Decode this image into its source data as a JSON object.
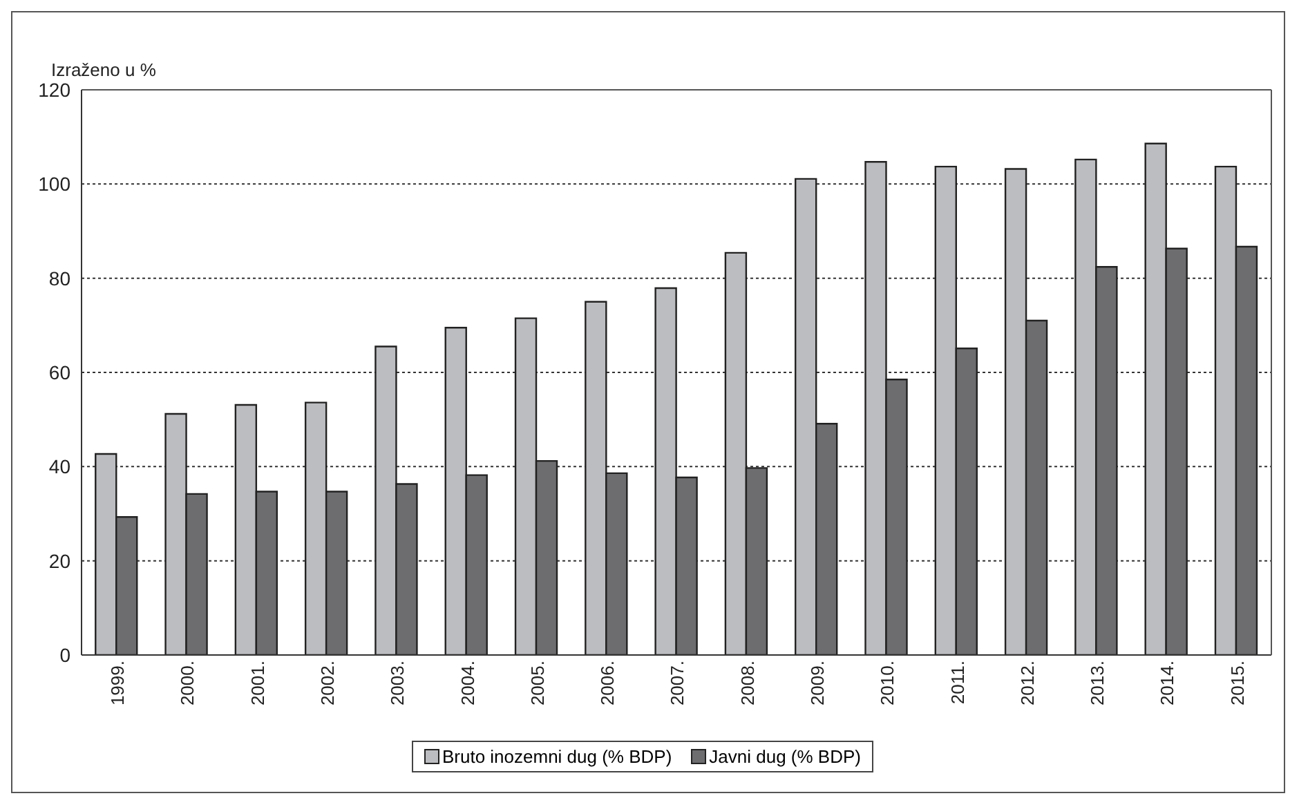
{
  "chart_data": {
    "type": "bar",
    "ylabel": "Izraženo u %",
    "categories": [
      "1999.",
      "2000.",
      "2001.",
      "2002.",
      "2003.",
      "2004.",
      "2005.",
      "2006.",
      "2007.",
      "2008.",
      "2009.",
      "2010.",
      "2011.",
      "2012.",
      "2013.",
      "2014.",
      "2015."
    ],
    "series": [
      {
        "name": "Bruto inozemni dug (% BDP)",
        "color": "#bcbdc0",
        "values": [
          42.7,
          51.2,
          53.1,
          53.6,
          65.5,
          69.5,
          71.5,
          75.0,
          77.9,
          85.4,
          101.1,
          104.7,
          103.7,
          103.2,
          105.2,
          108.6,
          103.7
        ]
      },
      {
        "name": "Javni dug (% BDP)",
        "color": "#6d6d70",
        "values": [
          29.3,
          34.2,
          34.7,
          34.7,
          36.3,
          38.2,
          41.2,
          38.6,
          37.7,
          39.7,
          49.1,
          58.5,
          65.1,
          71.0,
          82.4,
          86.3,
          86.7
        ]
      }
    ],
    "ylim": [
      0,
      120
    ],
    "yticks": [
      0,
      20,
      40,
      60,
      80,
      100,
      120
    ],
    "grid": "y",
    "legend": "bottom"
  }
}
